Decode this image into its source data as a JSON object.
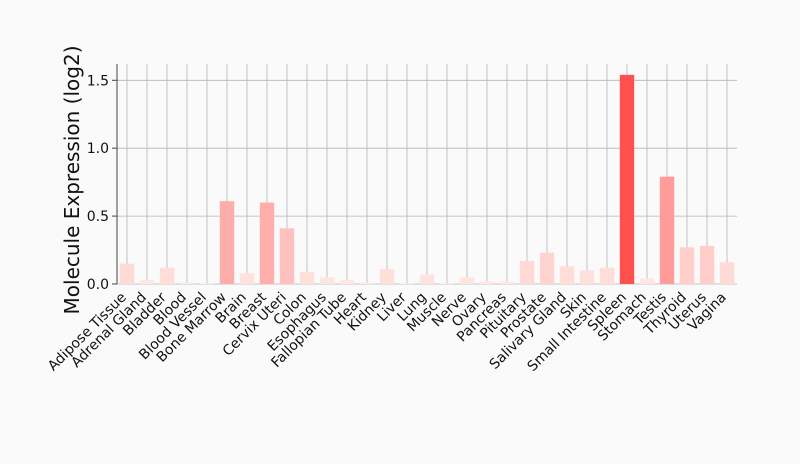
{
  "chart_data": {
    "type": "bar",
    "ylabel": "Molecule Expression (log2)",
    "xlabel": "",
    "ylim": [
      0,
      1.62
    ],
    "yticks": [
      "0.0",
      "0.5",
      "1.0",
      "1.5"
    ],
    "grid": true,
    "categories": [
      "Adipose Tissue",
      "Adrenal Gland",
      "Bladder",
      "Blood",
      "Blood Vessel",
      "Bone Marrow",
      "Brain",
      "Breast",
      "Cervix Uteri",
      "Colon",
      "Esophagus",
      "Fallopian Tube",
      "Heart",
      "Kidney",
      "Liver",
      "Lung",
      "Muscle",
      "Nerve",
      "Ovary",
      "Pancreas",
      "Pituitary",
      "Prostate",
      "Salivary Gland",
      "Skin",
      "Small Intestine",
      "Spleen",
      "Stomach",
      "Testis",
      "Thyroid",
      "Uterus",
      "Vagina"
    ],
    "values": [
      0.15,
      0.03,
      0.12,
      0.01,
      0.0,
      0.61,
      0.08,
      0.6,
      0.41,
      0.09,
      0.05,
      0.03,
      0.01,
      0.11,
      0.0,
      0.07,
      0.0,
      0.05,
      0.02,
      0.02,
      0.17,
      0.23,
      0.13,
      0.1,
      0.12,
      1.54,
      0.04,
      0.79,
      0.27,
      0.28,
      0.16
    ],
    "colors": {
      "max": "#ff5050",
      "min": "#ffeae5",
      "grid": "#b4b4b4",
      "axis": "#444444"
    }
  }
}
